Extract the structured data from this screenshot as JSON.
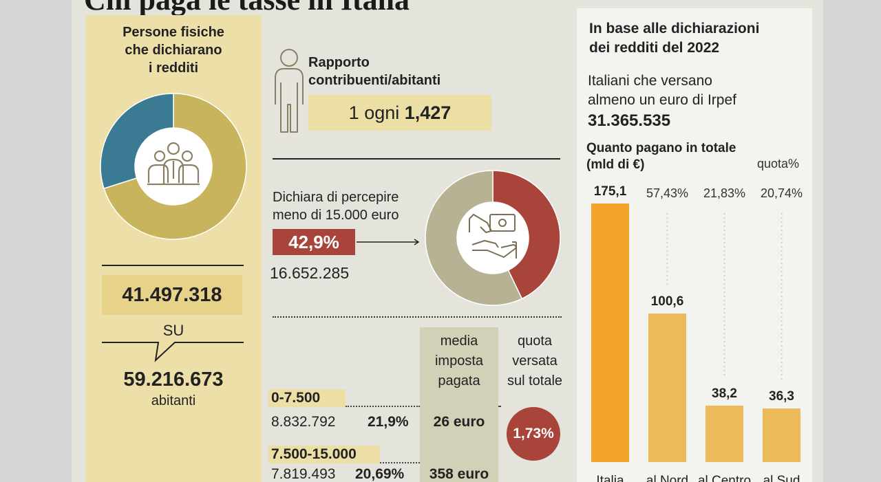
{
  "title": "Chi paga le tasse in Italia",
  "left": {
    "heading": [
      "Persone fisiche",
      "che dichiarano",
      "i redditi"
    ],
    "declarants": "41.497.318",
    "su": "SU",
    "inhabitants": "59.216.673",
    "inhabitants_label": "abitanti",
    "donut_icon": "people-group-icon"
  },
  "ratio": {
    "label": [
      "Rapporto",
      "contribuenti/abitanti"
    ],
    "value_prefix": "1 ogni ",
    "value_bold": "1,427",
    "icon": "person-outline-icon"
  },
  "under15": {
    "label": [
      "Dichiara di percepire",
      "meno di 15.000 euro"
    ],
    "percent": "42,9%",
    "count": "16.652.285",
    "donut_icon": "hand-money-icon"
  },
  "table": {
    "col_media": [
      "media",
      "imposta",
      "pagata"
    ],
    "col_quota": [
      "quota",
      "versata",
      "sul totale"
    ],
    "rows": [
      {
        "range": "0-7.500",
        "count": "8.832.792",
        "share": "21,9%",
        "avg_tax": "26 euro"
      },
      {
        "range": "7.500-15.000",
        "count": "7.819.493",
        "share": "20,69%",
        "avg_tax": "358 euro"
      }
    ],
    "total_share": "1,73%"
  },
  "right": {
    "heading": [
      "In base alle dichiarazioni",
      "dei redditi del 2022"
    ],
    "payers_label": [
      "Italiani che versano",
      "almeno un euro di Irpef"
    ],
    "payers_value": "31.365.535",
    "chart_heading": [
      "Quanto pagano in totale",
      "(mld di €)"
    ],
    "quota_label": "quota%"
  },
  "colors": {
    "gold": "#c8b45c",
    "teal": "#3a7a92",
    "red": "#a8443a",
    "beige": "#b8b294",
    "bar_main": "#f4a42a",
    "bar_other": "#ecba5a"
  },
  "chart_data": [
    {
      "type": "pie",
      "labels": [
        "",
        ""
      ],
      "values": [
        70.1,
        29.9
      ]
    },
    {
      "type": "pie",
      "labels": [
        "",
        ""
      ],
      "values": [
        42.9,
        57.1
      ]
    },
    {
      "type": "bar",
      "title": "Quanto pagano in totale",
      "ylabel": "(mld di €)",
      "categories": [
        "Italia",
        "al Nord",
        "al Centro",
        "al Sud"
      ],
      "values": [
        175.1,
        100.6,
        38.2,
        36.3
      ],
      "value_labels": [
        "175,1",
        "100,6",
        "38,2",
        "36,3"
      ],
      "quota": [
        "",
        "57,43%",
        "21,83%",
        "20,74%"
      ],
      "ylim": [
        0,
        175.1
      ]
    }
  ]
}
